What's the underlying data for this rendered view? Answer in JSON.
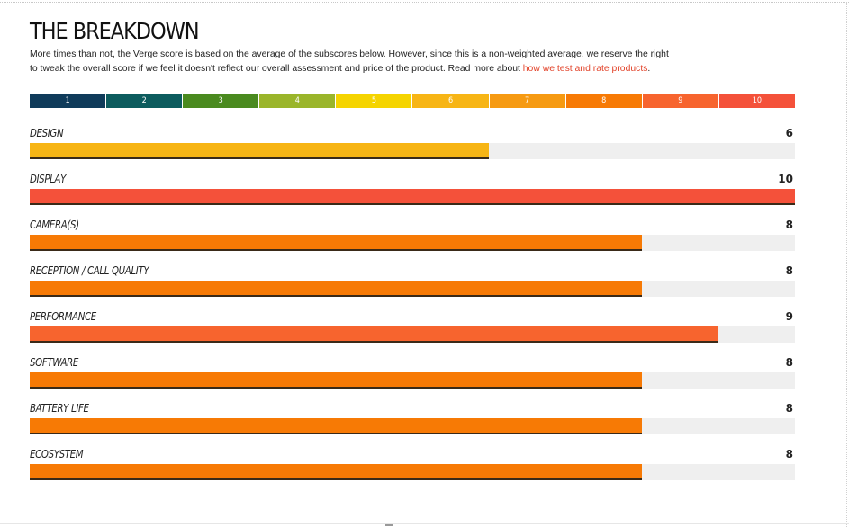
{
  "header": {
    "title": "THE BREAKDOWN",
    "intro_line1": "More times than not, the Verge score is based on the average of the subscores below. However, since this is a non-weighted average, we reserve the right",
    "intro_line2_prefix": "to tweak the overall score if we feel it doesn't reflect our overall assessment and price of the product. Read more about ",
    "intro_link": "how we test and rate products",
    "intro_suffix": "."
  },
  "score_scale": [
    {
      "label": "1",
      "color": "#0f3b5a"
    },
    {
      "label": "2",
      "color": "#0d5c5e"
    },
    {
      "label": "3",
      "color": "#4a8a1f"
    },
    {
      "label": "4",
      "color": "#9ab52a"
    },
    {
      "label": "5",
      "color": "#f5d400"
    },
    {
      "label": "6",
      "color": "#f7b515"
    },
    {
      "label": "7",
      "color": "#f69a12"
    },
    {
      "label": "8",
      "color": "#f77a05"
    },
    {
      "label": "9",
      "color": "#f7642e"
    },
    {
      "label": "10",
      "color": "#f4513a"
    }
  ],
  "chart_data": {
    "type": "bar",
    "orientation": "horizontal",
    "xlim": [
      0,
      10
    ],
    "categories": [
      "DESIGN",
      "DISPLAY",
      "CAMERA(S)",
      "RECEPTION / CALL QUALITY",
      "PERFORMANCE",
      "SOFTWARE",
      "BATTERY LIFE",
      "ECOSYSTEM"
    ],
    "values": [
      6,
      10,
      8,
      8,
      9,
      8,
      8,
      8
    ],
    "value_labels": [
      "6",
      "10",
      "8",
      "8",
      "9",
      "8",
      "8",
      "8"
    ],
    "bar_colors": [
      "#f7b515",
      "#f4513a",
      "#f77a05",
      "#f77a05",
      "#f7642e",
      "#f77a05",
      "#f77a05",
      "#f77a05"
    ]
  }
}
